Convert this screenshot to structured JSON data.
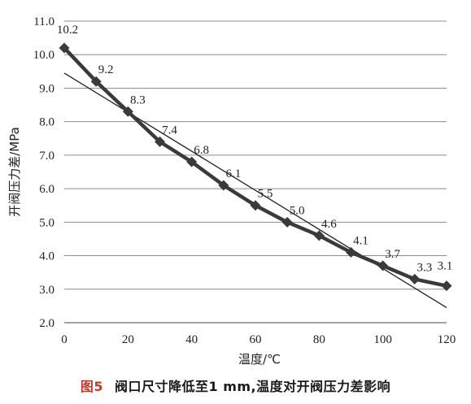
{
  "caption": {
    "figure_number": "图5",
    "text": "阀口尺寸降低至1 mm,温度对开阀压力差影响"
  },
  "chart_data": {
    "type": "line",
    "xlabel": "温度/℃",
    "ylabel": "开阀压力差/MPa",
    "xlim": [
      0,
      120
    ],
    "ylim": [
      2.0,
      11.0
    ],
    "x_ticks": [
      0,
      20,
      40,
      60,
      80,
      100,
      120
    ],
    "y_ticks": [
      "2.0",
      "3.0",
      "4.0",
      "5.0",
      "6.0",
      "7.0",
      "8.0",
      "9.0",
      "10.0",
      "11.0"
    ],
    "grid": "horizontal",
    "series": [
      {
        "x": [
          0,
          10,
          20,
          30,
          40,
          50,
          60,
          70,
          80,
          90,
          100,
          110,
          120
        ],
        "y": [
          10.2,
          9.2,
          8.3,
          7.4,
          6.8,
          6.1,
          5.5,
          5.0,
          4.6,
          4.1,
          3.7,
          3.3,
          3.1
        ],
        "labels": [
          "10.2",
          "9.2",
          "8.3",
          "7.4",
          "6.8",
          "6.1",
          "5.5",
          "5.0",
          "4.6",
          "4.1",
          "3.7",
          "3.3",
          "3.1"
        ],
        "marker": "diamond",
        "color": "#3a3a3a"
      }
    ],
    "trendline": {
      "type": "linear",
      "x": [
        0,
        120
      ],
      "y": [
        9.45,
        2.45
      ],
      "color": "#222222"
    }
  }
}
